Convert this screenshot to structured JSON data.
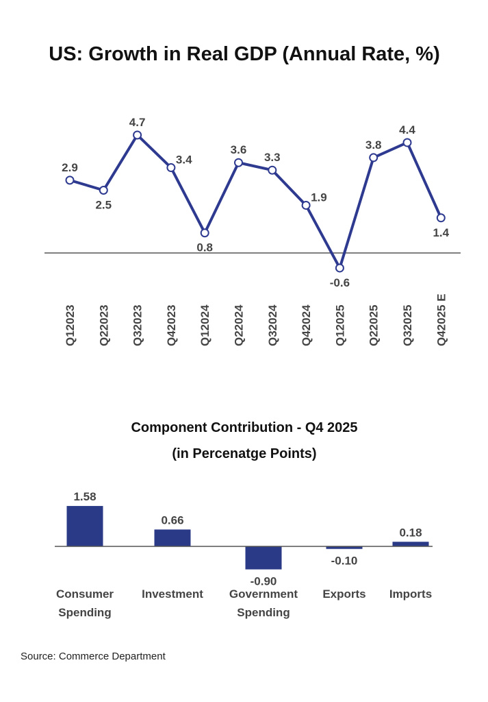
{
  "chart_data": [
    {
      "type": "line",
      "title": "US: Growth in Real GDP (Annual Rate, %)",
      "categories": [
        "Q12023",
        "Q22023",
        "Q32023",
        "Q42023",
        "Q12024",
        "Q22024",
        "Q32024",
        "Q42024",
        "Q12025",
        "Q22025",
        "Q32025",
        "Q42025 E"
      ],
      "values": [
        2.9,
        2.5,
        4.7,
        3.4,
        0.8,
        3.6,
        3.3,
        1.9,
        -0.6,
        3.8,
        4.4,
        1.4
      ],
      "data_labels": [
        "2.9",
        "2.5",
        "4.7",
        "3.4",
        "0.8",
        "3.6",
        "3.3",
        "1.9",
        "-0.6",
        "3.8",
        "4.4",
        "1.4"
      ],
      "xlabel": "",
      "ylabel": "",
      "grid": false,
      "color": "#2e3a8f"
    },
    {
      "type": "bar",
      "title": "Component Contribution - Q4 2025",
      "subtitle": "(in Percenatge Points)",
      "categories": [
        [
          "Consumer",
          "Spending"
        ],
        [
          "Investment"
        ],
        [
          "Government",
          "Spending"
        ],
        [
          "Exports"
        ],
        [
          "Imports"
        ]
      ],
      "values": [
        1.58,
        0.66,
        -0.9,
        -0.1,
        0.18
      ],
      "data_labels": [
        "1.58",
        "0.66",
        "-0.90",
        "-0.10",
        "0.18"
      ],
      "xlabel": "",
      "ylabel": "",
      "grid": false,
      "color": "#2b3a87"
    }
  ],
  "source": "Source: Commerce Department"
}
